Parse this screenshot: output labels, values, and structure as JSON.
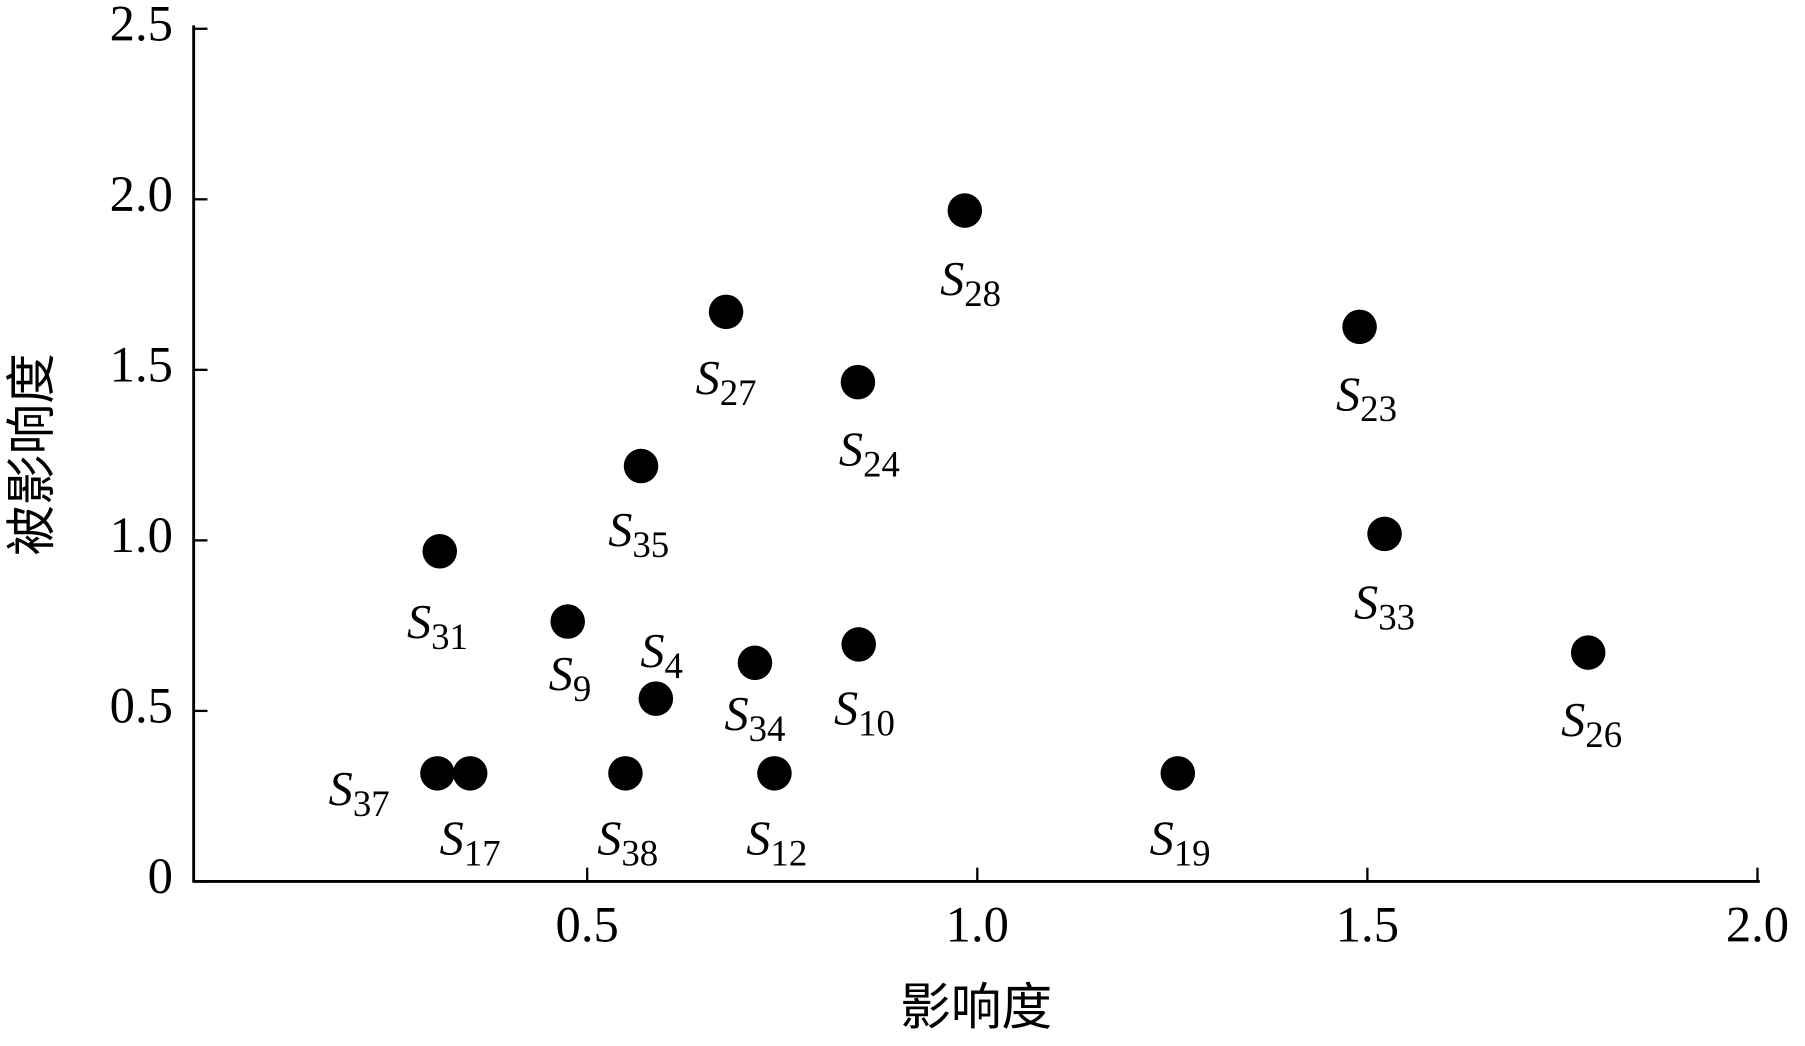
{
  "chart_data": {
    "type": "scatter",
    "x_label": "影响度",
    "y_label": "被影响度",
    "xlim": [
      0,
      2
    ],
    "ylim": [
      0,
      2.5
    ],
    "xticks": [
      0.5,
      {
        "value": 1,
        "label": "1.0"
      },
      1.5,
      {
        "value": 2,
        "label": "2.0"
      }
    ],
    "yticks": [
      0,
      0.5,
      {
        "value": 1,
        "label": "1.0"
      },
      1.5,
      {
        "value": 2,
        "label": "2.0"
      },
      2.5
    ],
    "color": "#000000",
    "series": [
      {
        "labels": [
          "S28",
          "S27",
          "S24",
          "S23",
          "S35",
          "S31",
          "S33",
          "S9",
          "S4",
          "S34",
          "S10",
          "S26",
          "S37",
          "S17",
          "S38",
          "S12",
          "S19"
        ],
        "x": [
          0.984,
          0.678,
          0.847,
          1.49,
          0.569,
          0.311,
          1.522,
          0.475,
          0.588,
          0.715,
          0.848,
          1.783,
          0.308,
          0.35,
          0.549,
          0.74,
          1.257
        ],
        "values": [
          1.967,
          1.67,
          1.464,
          1.626,
          1.218,
          0.968,
          1.019,
          0.762,
          0.536,
          0.641,
          0.695,
          0.671,
          0.317,
          0.317,
          0.317,
          0.317,
          0.317
        ]
      }
    ]
  }
}
